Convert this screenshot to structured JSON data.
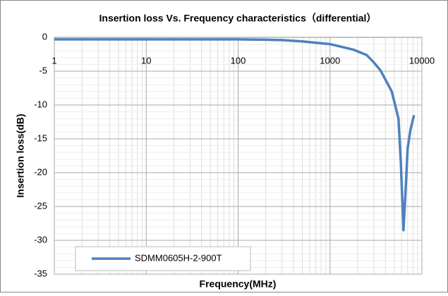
{
  "chart_data": {
    "type": "line",
    "title": "Insertion loss Vs. Frequency characteristics（differential）",
    "x_label": "Frequency(MHz)",
    "y_label": "Insertion loss(dB)",
    "x": [
      1,
      10,
      100,
      200,
      300,
      500,
      1000,
      1780,
      2500,
      2950,
      3550,
      4700,
      5560,
      5900,
      6300,
      6650,
      7000,
      7500,
      8200
    ],
    "series": [
      {
        "name": "SDMM0605H-2-900T",
        "color": "#4f81bd",
        "values": [
          -0.3,
          -0.3,
          -0.3,
          -0.35,
          -0.4,
          -0.6,
          -1.0,
          -1.8,
          -2.6,
          -3.6,
          -4.9,
          -8,
          -12,
          -18.5,
          -28.5,
          -22.6,
          -16.4,
          -13.7,
          -11.5
        ]
      }
    ],
    "xlim": [
      1,
      10000
    ],
    "xticks": [
      1,
      10,
      100,
      1000,
      10000
    ],
    "x_log": true,
    "ylim": [
      -35,
      0
    ],
    "yticks": [
      0,
      -5,
      -10,
      -15,
      -20,
      -25,
      -30,
      -35
    ],
    "grid": true,
    "legend": "lower left"
  }
}
